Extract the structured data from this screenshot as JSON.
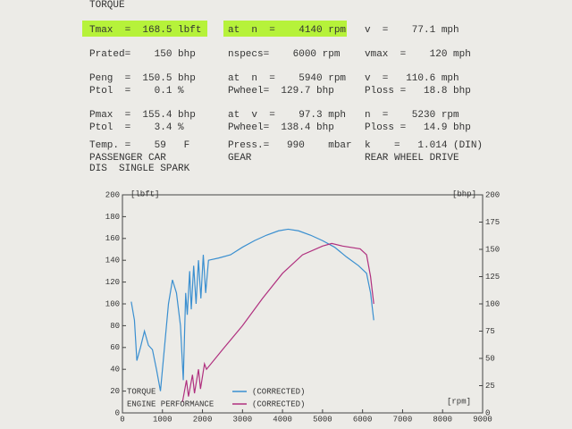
{
  "header": {
    "title": "TORQUE"
  },
  "rows": [
    [
      "Tmax  =  168.5 lbft",
      "at  n  =    4140 rpm",
      "v  =    77.1 mph"
    ],
    [
      "Prated=    150 bhp",
      "nspecs=    6000 rpm",
      "vmax  =    120 mph"
    ],
    [
      "Peng  =  150.5 bhp",
      "at  n  =    5940 rpm",
      "v  =   110.6 mph"
    ],
    [
      "Ptol  =    0.1 %",
      "Pwheel=  129.7 bhp",
      "Ploss =   18.8 bhp"
    ],
    [
      "Pmax  =  155.4 bhp",
      "at  v  =    97.3 mph",
      "n  =    5230 rpm"
    ],
    [
      "Ptol  =    3.4 %",
      "Pwheel=  138.4 bhp",
      "Ploss =   14.9 bhp"
    ],
    [
      "Temp. =    59   F",
      "Press.=   990    mbar",
      "k    =   1.014 (DIN)"
    ],
    [
      "PASSENGER CAR",
      "GEAR",
      "REAR WHEEL DRIVE"
    ],
    [
      "DIS  SINGLE SPARK"
    ]
  ],
  "chart_data": {
    "type": "line",
    "ylabel": "[lbft]",
    "y2label": "[bhp]",
    "xlabel": "[rpm]",
    "xlim": [
      0,
      9000
    ],
    "xticks": [
      0,
      1000,
      2000,
      3000,
      4000,
      5000,
      6000,
      7000,
      8000,
      9000
    ],
    "ylim": [
      0,
      200
    ],
    "yticks": [
      0,
      20,
      40,
      60,
      80,
      100,
      120,
      140,
      160,
      180,
      200
    ],
    "y2lim": [
      0,
      200
    ],
    "y2ticks": [
      0,
      25,
      50,
      75,
      100,
      125,
      150,
      175,
      200
    ],
    "series": [
      {
        "name": "TORQUE",
        "note": "(CORRECTED)",
        "color": "#3a8fd0",
        "x": [
          220,
          300,
          360,
          450,
          550,
          650,
          750,
          850,
          950,
          1050,
          1150,
          1250,
          1350,
          1450,
          1520,
          1580,
          1620,
          1680,
          1720,
          1780,
          1840,
          1900,
          1960,
          2020,
          2080,
          2150,
          2400,
          2700,
          3000,
          3300,
          3600,
          3900,
          4140,
          4400,
          4700,
          5000,
          5300,
          5600,
          5900,
          6100,
          6200,
          6280
        ],
        "values": [
          102,
          85,
          48,
          60,
          75,
          62,
          58,
          40,
          20,
          60,
          100,
          122,
          110,
          80,
          30,
          110,
          90,
          130,
          95,
          135,
          100,
          140,
          105,
          145,
          110,
          140,
          142,
          145,
          152,
          158,
          163,
          167,
          168.5,
          167,
          163,
          158,
          152,
          143,
          135,
          128,
          110,
          85
        ]
      },
      {
        "name": "ENGINE PERFORMANCE",
        "note": "(CORRECTED)",
        "color": "#b0307f",
        "axis": "y2",
        "x": [
          1500,
          1600,
          1650,
          1750,
          1800,
          1900,
          1950,
          2050,
          2100,
          2500,
          3000,
          3500,
          4000,
          4500,
          5000,
          5230,
          5500,
          5940,
          6100,
          6200,
          6280
        ],
        "values": [
          10,
          30,
          15,
          35,
          18,
          40,
          22,
          45,
          40,
          58,
          80,
          105,
          128,
          145,
          153,
          155.4,
          153,
          150.5,
          145,
          125,
          100
        ]
      }
    ]
  }
}
